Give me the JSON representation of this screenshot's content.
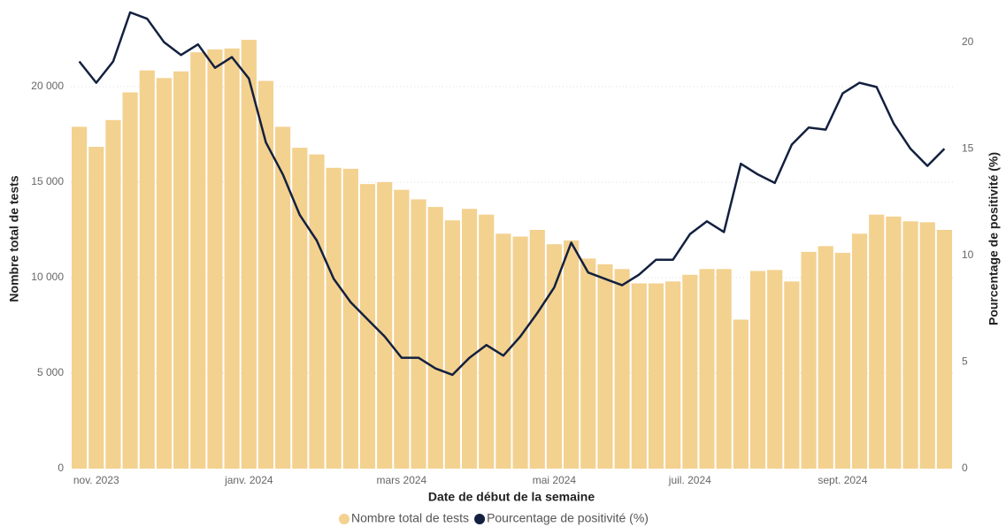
{
  "chart_data": {
    "type": "combo",
    "x_label": "Date de début de la semaine",
    "y_label": "Nombre total de tests",
    "y2_label": "Pourcentage de positivité (%)",
    "categories": [
      null,
      "nov. 2023",
      null,
      null,
      null,
      null,
      null,
      null,
      null,
      null,
      "janv. 2024",
      null,
      null,
      null,
      null,
      null,
      null,
      null,
      null,
      "mars 2024",
      null,
      null,
      null,
      null,
      null,
      null,
      null,
      null,
      "mai 2024",
      null,
      null,
      null,
      null,
      null,
      null,
      null,
      "juil. 2024",
      null,
      null,
      null,
      null,
      null,
      null,
      null,
      null,
      "sept. 2024",
      null,
      null,
      null,
      null,
      null,
      null
    ],
    "series": [
      {
        "name": "Nombre total de tests",
        "type": "bar",
        "axis": "y",
        "color": "#f3d18f",
        "values": [
          17900,
          16850,
          18250,
          19700,
          20850,
          20450,
          20800,
          21800,
          21950,
          22000,
          22450,
          20300,
          17900,
          16800,
          16450,
          15750,
          15700,
          14900,
          15000,
          14600,
          14100,
          13700,
          13000,
          13600,
          13300,
          12300,
          12150,
          12500,
          11750,
          11950,
          11000,
          10700,
          10450,
          9700,
          9700,
          9800,
          10150,
          10450,
          10450,
          7800,
          10350,
          10400,
          9800,
          11350,
          11650,
          11300,
          12300,
          13300,
          13200,
          12950,
          12900,
          12500
        ]
      },
      {
        "name": "Pourcentage de positivité (%)",
        "type": "line",
        "axis": "y2",
        "color": "#13203f",
        "values": [
          19.1,
          18.1,
          19.1,
          21.4,
          21.1,
          20.0,
          19.4,
          19.9,
          18.8,
          19.3,
          18.3,
          15.3,
          13.8,
          11.9,
          10.7,
          8.9,
          7.8,
          7.0,
          6.2,
          5.2,
          5.2,
          4.7,
          4.4,
          5.2,
          5.8,
          5.3,
          6.2,
          7.3,
          8.5,
          10.6,
          9.2,
          8.9,
          8.6,
          9.1,
          9.8,
          9.8,
          11.0,
          11.6,
          11.1,
          14.3,
          13.8,
          13.4,
          15.2,
          16.0,
          15.9,
          17.6,
          18.1,
          17.9,
          16.2,
          15.0,
          14.2,
          15.0
        ]
      }
    ],
    "ylim": [
      0,
      24000
    ],
    "yticks": [
      0,
      {
        "value": 5000,
        "label": "5 000"
      },
      {
        "value": 10000,
        "label": "10 000"
      },
      {
        "value": 15000,
        "label": "15 000"
      },
      {
        "value": 20000,
        "label": "20 000"
      }
    ],
    "y2lim": [
      0,
      21.5
    ],
    "y2ticks": [
      0,
      5,
      10,
      15,
      20
    ],
    "grid": true,
    "legend": "bottom"
  }
}
